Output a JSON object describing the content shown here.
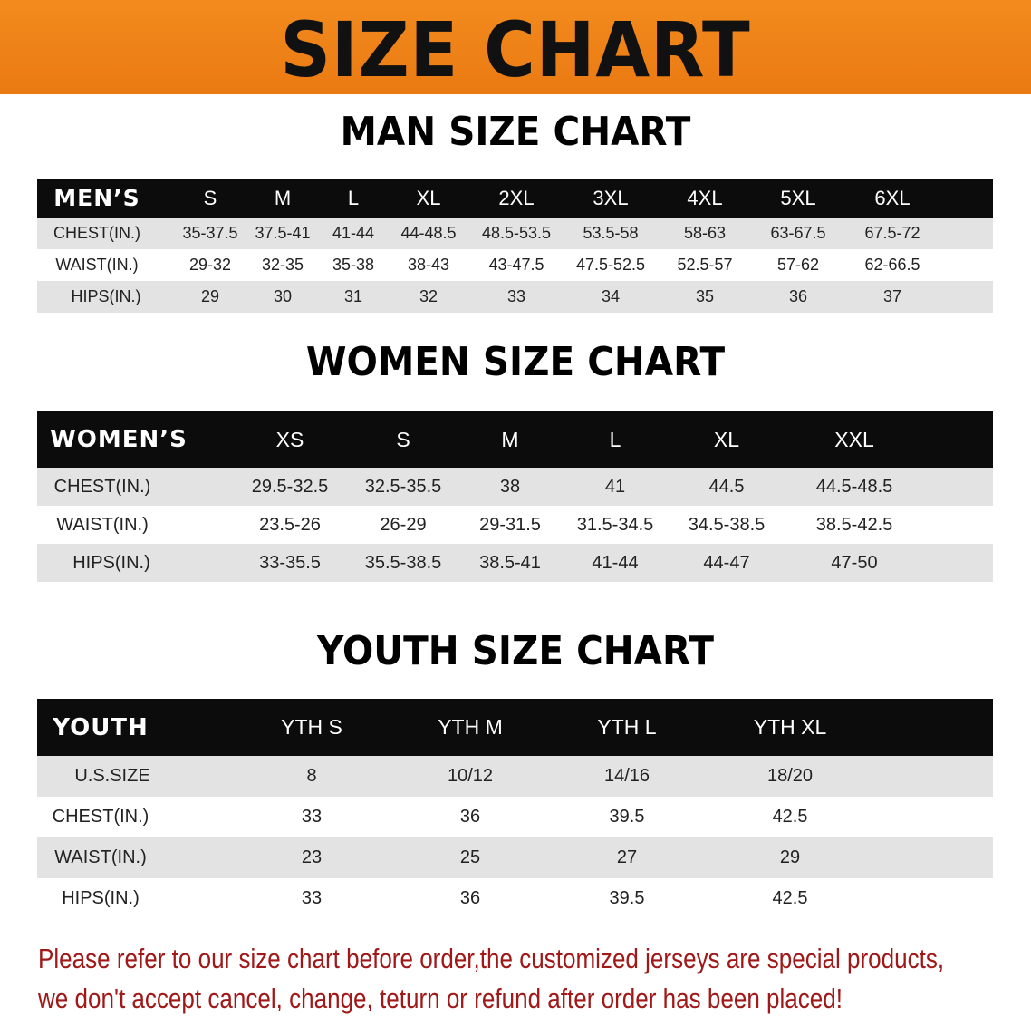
{
  "banner": {
    "title": "SIZE CHART",
    "color": "#f08a1c"
  },
  "men": {
    "title": "MAN SIZE CHART",
    "header": [
      "MEN’S",
      "S",
      "M",
      "L",
      "XL",
      "2XL",
      "3XL",
      "4XL",
      "5XL",
      "6XL"
    ],
    "rows": [
      [
        "CHEST(IN.)",
        "35-37.5",
        "37.5-41",
        "41-44",
        "44-48.5",
        "48.5-53.5",
        "53.5-58",
        "58-63",
        "63-67.5",
        "67.5-72"
      ],
      [
        "WAIST(IN.)",
        "29-32",
        "32-35",
        "35-38",
        "38-43",
        "43-47.5",
        "47.5-52.5",
        "52.5-57",
        "57-62",
        "62-66.5"
      ],
      [
        "HIPS(IN.)",
        "29",
        "30",
        "31",
        "32",
        "33",
        "34",
        "35",
        "36",
        "37"
      ]
    ]
  },
  "women": {
    "title": "WOMEN SIZE CHART",
    "header": [
      "WOMEN’S",
      "XS",
      "S",
      "M",
      "L",
      "XL",
      "XXL"
    ],
    "rows": [
      [
        "CHEST(IN.)",
        "29.5-32.5",
        "32.5-35.5",
        "38",
        "41",
        "44.5",
        "44.5-48.5"
      ],
      [
        "WAIST(IN.)",
        "23.5-26",
        "26-29",
        "29-31.5",
        "31.5-34.5",
        "34.5-38.5",
        "38.5-42.5"
      ],
      [
        "HIPS(IN.)",
        "33-35.5",
        "35.5-38.5",
        "38.5-41",
        "41-44",
        "44-47",
        "47-50"
      ]
    ]
  },
  "youth": {
    "title": "YOUTH SIZE CHART",
    "header": [
      "YOUTH",
      "YTH S",
      "YTH M",
      "YTH L",
      "YTH XL"
    ],
    "rows": [
      [
        "U.S.SIZE",
        "8",
        "10/12",
        "14/16",
        "18/20"
      ],
      [
        "CHEST(IN.)",
        "33",
        "36",
        "39.5",
        "42.5"
      ],
      [
        "WAIST(IN.)",
        "23",
        "25",
        "27",
        "29"
      ],
      [
        "HIPS(IN.)",
        "33",
        "36",
        "39.5",
        "42.5"
      ]
    ]
  },
  "note": {
    "line1": "Please refer to our size chart before order,the customized jerseys are special products,",
    "line2": "we don't accept cancel, change, teturn or refund after order has been placed!",
    "color": "#a01818"
  }
}
